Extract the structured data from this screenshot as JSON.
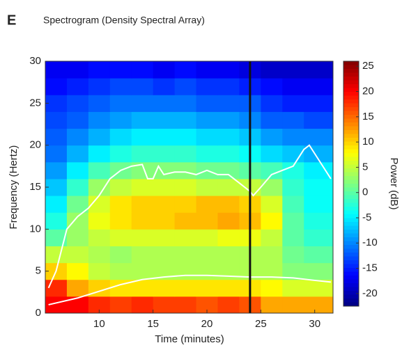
{
  "panel_label": "E",
  "chart_data": {
    "type": "heatmap",
    "title": "Spectrogram (Density Spectral Array)",
    "x_label": "Time (minutes)",
    "y_label": "Frequency (Hertz)",
    "colorbar_label": "Power (dB)",
    "colormap": "jet",
    "x": [
      6,
      8,
      10,
      12,
      14,
      16,
      18,
      20,
      22,
      24,
      26,
      28,
      30
    ],
    "y": [
      1,
      3,
      5,
      7,
      9,
      11,
      13,
      15,
      17,
      19,
      21,
      23,
      25,
      27,
      29
    ],
    "z": [
      [
        20,
        20,
        18,
        17,
        18,
        17,
        17,
        16,
        17,
        16,
        12,
        12,
        12
      ],
      [
        18,
        12,
        10,
        9,
        9,
        9,
        9,
        9,
        9,
        9,
        8,
        6,
        6
      ],
      [
        10,
        8,
        5,
        4,
        4,
        4,
        4,
        4,
        4,
        4,
        4,
        2,
        2
      ],
      [
        5,
        5,
        4,
        3,
        4,
        4,
        4,
        4,
        4,
        4,
        4,
        1,
        0
      ],
      [
        0,
        3,
        5,
        6,
        6,
        6,
        6,
        6,
        7,
        7,
        5,
        0,
        -2
      ],
      [
        -3,
        3,
        7,
        9,
        10,
        10,
        11,
        11,
        12,
        11,
        8,
        0,
        -3
      ],
      [
        -5,
        1,
        6,
        9,
        10,
        10,
        10,
        11,
        11,
        10,
        6,
        -1,
        -4
      ],
      [
        -7,
        -2,
        3,
        5,
        6,
        6,
        6,
        5,
        5,
        5,
        3,
        -2,
        -4
      ],
      [
        -9,
        -5,
        -1,
        1,
        2,
        2,
        2,
        1,
        1,
        0,
        -1,
        -3,
        -5
      ],
      [
        -11,
        -8,
        -5,
        -3,
        -2,
        -2,
        -2,
        -3,
        -3,
        -4,
        -6,
        -7,
        -8
      ],
      [
        -12,
        -10,
        -8,
        -6,
        -5,
        -5,
        -5,
        -6,
        -6,
        -7,
        -9,
        -10,
        -10
      ],
      [
        -13,
        -12,
        -10,
        -9,
        -8,
        -8,
        -8,
        -9,
        -9,
        -10,
        -12,
        -12,
        -13
      ],
      [
        -14,
        -13,
        -12,
        -11,
        -11,
        -11,
        -11,
        -12,
        -12,
        -12,
        -14,
        -15,
        -15
      ],
      [
        -16,
        -15,
        -14,
        -13,
        -13,
        -14,
        -13,
        -14,
        -14,
        -15,
        -16,
        -17,
        -17
      ],
      [
        -17,
        -17,
        -16,
        -16,
        -16,
        -17,
        -16,
        -17,
        -17,
        -18,
        -19,
        -19,
        -19
      ]
    ],
    "xlim": [
      5,
      31.7
    ],
    "ylim": [
      0,
      30
    ],
    "xticks": [
      10,
      15,
      20,
      25,
      30
    ],
    "yticks": [
      0,
      5,
      10,
      15,
      20,
      25,
      30
    ],
    "clim": [
      -22.5,
      26
    ],
    "cticks": [
      -20,
      -15,
      -10,
      -5,
      0,
      5,
      10,
      15,
      20,
      25
    ],
    "lines": [
      {
        "color": "#ffffff",
        "x": [
          5.3,
          6,
          7,
          8,
          9,
          10,
          11,
          12,
          13,
          14,
          14.5,
          15,
          15.5,
          16,
          17,
          18,
          19,
          20,
          21,
          22,
          23,
          24,
          24.3,
          25,
          26,
          27,
          28,
          29,
          29.5,
          30,
          31.5
        ],
        "values": [
          3,
          5,
          10,
          11.5,
          12.5,
          14,
          16,
          17,
          17.5,
          17.7,
          16,
          16,
          17.5,
          16.5,
          16.8,
          16.8,
          16.5,
          17,
          16.5,
          16.5,
          15.5,
          14.5,
          14,
          15,
          16.5,
          17,
          17.5,
          19.5,
          20,
          19,
          16
        ]
      },
      {
        "color": "#ffffff",
        "x": [
          5.3,
          8,
          10,
          12,
          14,
          16,
          18,
          20,
          22,
          24,
          26,
          28,
          30,
          31.5
        ],
        "values": [
          1,
          1.8,
          2.6,
          3.4,
          4,
          4.3,
          4.5,
          4.5,
          4.4,
          4.3,
          4.3,
          4.2,
          3.9,
          3.7
        ]
      }
    ],
    "vline": {
      "x": 24,
      "color": "#111111"
    }
  }
}
